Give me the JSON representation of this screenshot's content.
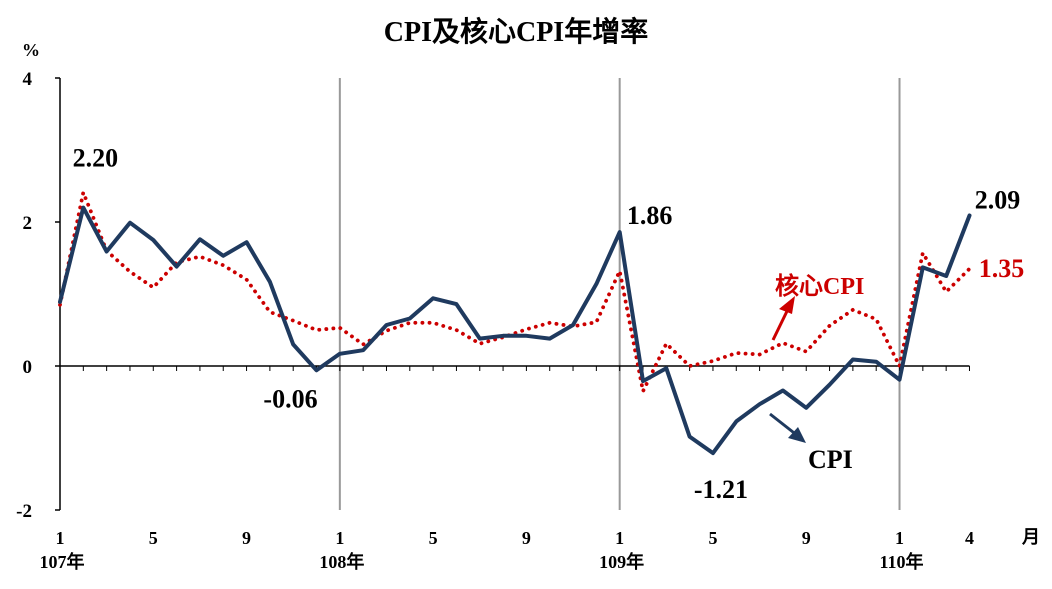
{
  "chart_data": {
    "type": "line",
    "title": "CPI及核心CPI年增率",
    "ylabel": "%",
    "xlabel": "月",
    "ylim": [
      -2,
      4
    ],
    "y_ticks": [
      -2,
      0,
      2,
      4
    ],
    "grid": false,
    "x": [
      "107-1",
      "107-2",
      "107-3",
      "107-4",
      "107-5",
      "107-6",
      "107-7",
      "107-8",
      "107-9",
      "107-10",
      "107-11",
      "107-12",
      "108-1",
      "108-2",
      "108-3",
      "108-4",
      "108-5",
      "108-6",
      "108-7",
      "108-8",
      "108-9",
      "108-10",
      "108-11",
      "108-12",
      "109-1",
      "109-2",
      "109-3",
      "109-4",
      "109-5",
      "109-6",
      "109-7",
      "109-8",
      "109-9",
      "109-10",
      "109-11",
      "109-12",
      "110-1",
      "110-2",
      "110-3",
      "110-4"
    ],
    "month_ticks": [
      {
        "index": 0,
        "label": "1"
      },
      {
        "index": 4,
        "label": "5"
      },
      {
        "index": 8,
        "label": "9"
      },
      {
        "index": 12,
        "label": "1"
      },
      {
        "index": 16,
        "label": "5"
      },
      {
        "index": 20,
        "label": "9"
      },
      {
        "index": 24,
        "label": "1"
      },
      {
        "index": 28,
        "label": "5"
      },
      {
        "index": 32,
        "label": "9"
      },
      {
        "index": 36,
        "label": "1"
      },
      {
        "index": 39,
        "label": "4"
      }
    ],
    "year_labels": [
      {
        "index": 0,
        "label": "107年"
      },
      {
        "index": 12,
        "label": "108年"
      },
      {
        "index": 24,
        "label": "109年"
      },
      {
        "index": 36,
        "label": "110年"
      }
    ],
    "year_dividers": [
      12,
      24,
      36
    ],
    "series": [
      {
        "name": "CPI",
        "color": "#1f3a5f",
        "style": "solid",
        "values": [
          0.89,
          2.2,
          1.59,
          1.99,
          1.75,
          1.38,
          1.76,
          1.53,
          1.72,
          1.17,
          0.3,
          -0.06,
          0.17,
          0.22,
          0.57,
          0.66,
          0.94,
          0.86,
          0.38,
          0.42,
          0.42,
          0.38,
          0.57,
          1.14,
          1.86,
          -0.21,
          -0.03,
          -0.98,
          -1.21,
          -0.77,
          -0.53,
          -0.34,
          -0.58,
          -0.26,
          0.09,
          0.06,
          -0.19,
          1.37,
          1.25,
          2.09
        ]
      },
      {
        "name": "核心CPI",
        "color": "#cc0000",
        "style": "dotted",
        "values": [
          0.85,
          2.41,
          1.6,
          1.31,
          1.09,
          1.44,
          1.52,
          1.4,
          1.2,
          0.75,
          0.63,
          0.5,
          0.53,
          0.3,
          0.49,
          0.6,
          0.6,
          0.5,
          0.31,
          0.4,
          0.51,
          0.6,
          0.55,
          0.61,
          1.32,
          -0.35,
          0.31,
          0.0,
          0.07,
          0.18,
          0.16,
          0.32,
          0.2,
          0.56,
          0.78,
          0.65,
          0.0,
          1.57,
          1.03,
          1.35
        ]
      }
    ],
    "annotations": [
      {
        "text": "2.20",
        "series": 0,
        "index": 1
      },
      {
        "text": "-0.06",
        "series": 0,
        "index": 11
      },
      {
        "text": "1.86",
        "series": 0,
        "index": 24
      },
      {
        "text": "-1.21",
        "series": 0,
        "index": 28
      },
      {
        "text": "2.09",
        "series": 0,
        "index": 39
      },
      {
        "text": "1.35",
        "series": 1,
        "index": 39
      }
    ],
    "legend": [
      {
        "text": "核心CPI",
        "series": 1,
        "placement": "above-line"
      },
      {
        "text": "CPI",
        "series": 0,
        "placement": "below-line"
      }
    ]
  }
}
